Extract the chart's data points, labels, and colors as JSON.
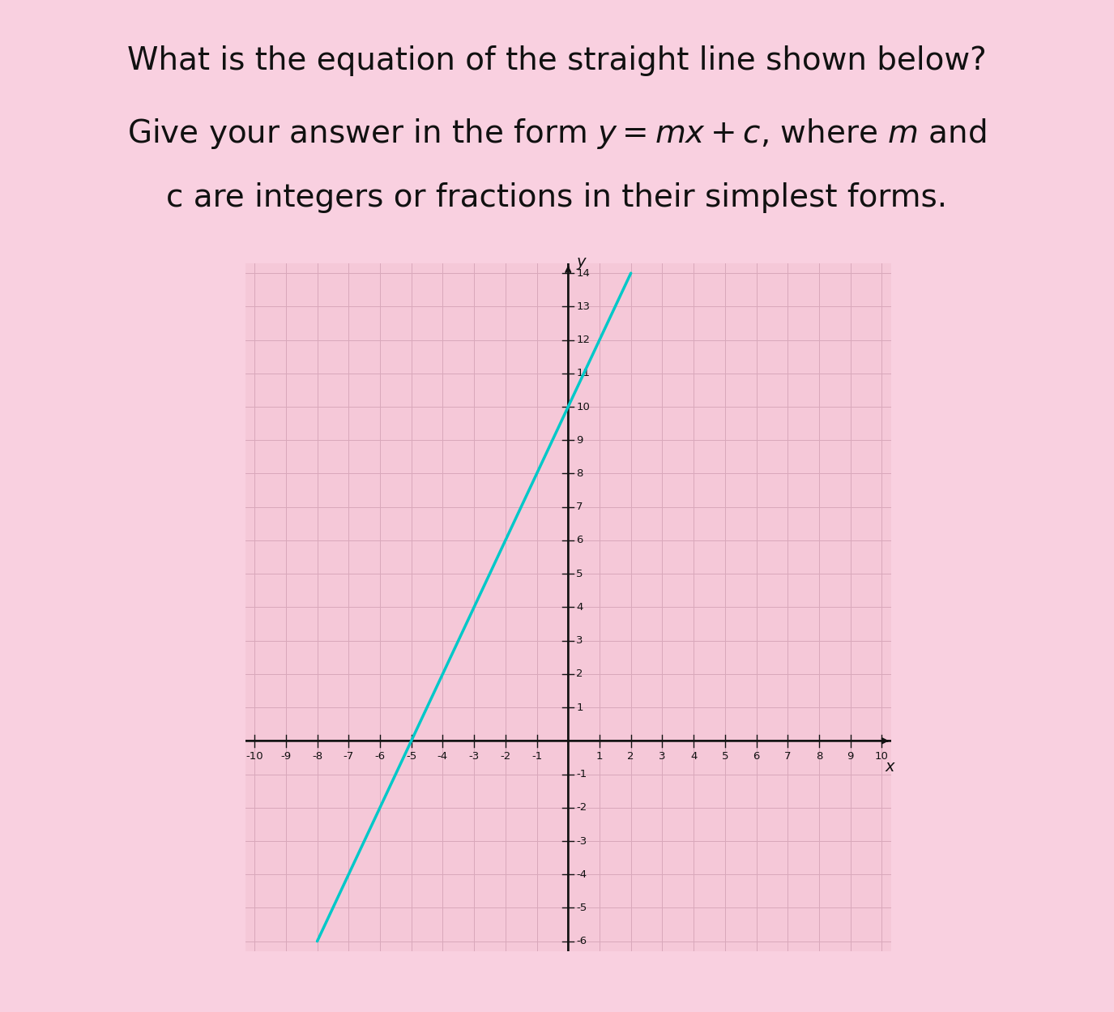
{
  "background_color": "#f9d0e0",
  "plot_background_color": "#f5c8d8",
  "grid_color": "#d9a8bb",
  "title_line1": "What is the equation of the straight line shown below?",
  "title_line2_normal": "Give your answer in the form ",
  "title_line2_italic": "y",
  "title_line2_normal2": " = ",
  "title_line2_italic2": "mx",
  "title_line2_normal3": " + ",
  "title_line2_italic3": "c",
  "title_line2_normal4": ", where ",
  "title_line2_italic4": "m",
  "title_line2_normal5": " and",
  "title_line3": "c are integers or fractions in their simplest forms.",
  "xmin": -10,
  "xmax": 10,
  "ymin": -6,
  "ymax": 14,
  "slope": 2,
  "intercept": 10,
  "line_color": "#00c8c8",
  "line_x_start": -8,
  "line_x_end": 2,
  "axis_color": "#111111",
  "tick_color": "#111111",
  "font_size_title": 28,
  "font_size_axis_label": 16,
  "line_width": 2.5
}
